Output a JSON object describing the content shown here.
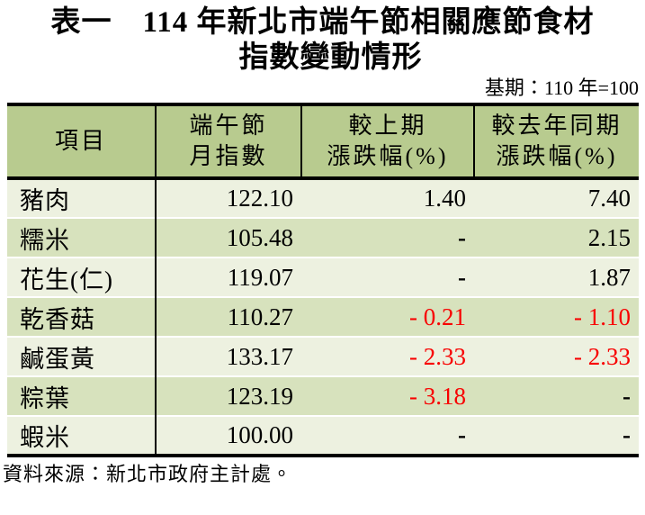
{
  "page": {
    "title_line1": "表一　114 年新北市端午節相關應節食材",
    "title_line2": "指數變動情形",
    "base_period": "基期：110 年=100",
    "source": "資料來源：新北市政府主計處。"
  },
  "colors": {
    "header_bg": "#b8cb8f",
    "row_light": "#edf1e0",
    "row_dark": "#d7e2bd",
    "negative": "#f80000",
    "border": "#000000",
    "text": "#000000"
  },
  "table": {
    "headers": [
      {
        "line1": "項目",
        "line2": ""
      },
      {
        "line1": "端午節",
        "line2": "月指數"
      },
      {
        "line1": "較上期",
        "line2": "漲跌幅(%)"
      },
      {
        "line1": "較去年同期",
        "line2": "漲跌幅(%)"
      }
    ],
    "rows": [
      {
        "item": "豬肉",
        "index": "122.10",
        "mom": "1.40",
        "yoy": "7.40",
        "mom_negative": false,
        "yoy_negative": false
      },
      {
        "item": "糯米",
        "index": "105.48",
        "mom": "-",
        "yoy": "2.15",
        "mom_negative": false,
        "yoy_negative": false
      },
      {
        "item": "花生(仁)",
        "index": "119.07",
        "mom": "-",
        "yoy": "1.87",
        "mom_negative": false,
        "yoy_negative": false
      },
      {
        "item": "乾香菇",
        "index": "110.27",
        "mom": "- 0.21",
        "yoy": "- 1.10",
        "mom_negative": true,
        "yoy_negative": true
      },
      {
        "item": "鹹蛋黃",
        "index": "133.17",
        "mom": "- 2.33",
        "yoy": "- 2.33",
        "mom_negative": true,
        "yoy_negative": true
      },
      {
        "item": "粽葉",
        "index": "123.19",
        "mom": "- 3.18",
        "yoy": "-",
        "mom_negative": true,
        "yoy_negative": false
      },
      {
        "item": "蝦米",
        "index": "100.00",
        "mom": "-",
        "yoy": "-",
        "mom_negative": false,
        "yoy_negative": false
      }
    ]
  }
}
